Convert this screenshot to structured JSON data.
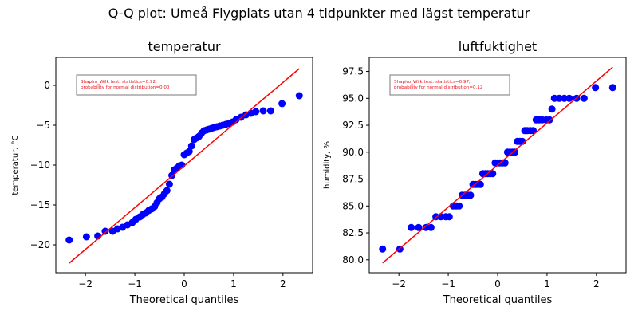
{
  "figure": {
    "suptitle": "Q-Q plot: Umeå Flygplats utan 4 tidpunkter med lägst temperatur"
  },
  "chart_data": [
    {
      "type": "scatter",
      "title": "temperatur",
      "xlabel": "Theoretical quantiles",
      "ylabel": "temperatur, °C",
      "xlim": [
        -2.6,
        2.6
      ],
      "ylim": [
        -23.5,
        3.5
      ],
      "xticks": [
        -2,
        -1,
        0,
        1,
        2
      ],
      "xtick_labels": [
        "−2",
        "−1",
        "0",
        "1",
        "2"
      ],
      "yticks": [
        -20,
        -15,
        -10,
        -5,
        0
      ],
      "ytick_labels": [
        "−20",
        "−15",
        "−10",
        "−5",
        "0"
      ],
      "grid": false,
      "annotation": [
        "Shapiro_Wilk test: statistics=0.92,",
        "probability for normal distribution=0.00"
      ],
      "annotation_color": "#e8141e",
      "point_color": "#0000ff",
      "line_color": "#ff0000",
      "reference_line": {
        "x": [
          -2.33,
          2.33
        ],
        "y": [
          -22.3,
          2.1
        ]
      },
      "points": {
        "x": [
          -2.33,
          -1.98,
          -1.75,
          -1.6,
          -1.45,
          -1.35,
          -1.25,
          -1.15,
          -1.05,
          -0.98,
          -0.9,
          -0.84,
          -0.78,
          -0.72,
          -0.66,
          -0.6,
          -0.55,
          -0.5,
          -0.45,
          -0.4,
          -0.35,
          -0.3,
          -0.25,
          -0.2,
          -0.15,
          -0.1,
          -0.05,
          0.0,
          0.05,
          0.1,
          0.15,
          0.2,
          0.25,
          0.3,
          0.35,
          0.4,
          0.45,
          0.5,
          0.55,
          0.6,
          0.66,
          0.72,
          0.78,
          0.84,
          0.9,
          0.98,
          1.05,
          1.15,
          1.25,
          1.35,
          1.45,
          1.6,
          1.75,
          1.98,
          2.33
        ],
        "y": [
          -19.4,
          -19.0,
          -18.9,
          -18.3,
          -18.3,
          -18.0,
          -17.8,
          -17.5,
          -17.2,
          -16.8,
          -16.5,
          -16.2,
          -16.0,
          -15.7,
          -15.5,
          -15.2,
          -14.7,
          -14.2,
          -14.0,
          -13.6,
          -13.2,
          -12.4,
          -11.3,
          -10.6,
          -10.4,
          -10.1,
          -10.0,
          -8.7,
          -8.5,
          -8.3,
          -7.6,
          -6.8,
          -6.6,
          -6.4,
          -6.0,
          -5.7,
          -5.6,
          -5.5,
          -5.4,
          -5.3,
          -5.2,
          -5.1,
          -5.0,
          -4.9,
          -4.8,
          -4.6,
          -4.3,
          -4.0,
          -3.7,
          -3.5,
          -3.3,
          -3.2,
          -3.2,
          -2.3,
          -1.3
        ]
      }
    },
    {
      "type": "scatter",
      "title": "luftfuktighet",
      "xlabel": "Theoretical quantiles",
      "ylabel": "humidity, %",
      "xlim": [
        -2.6,
        2.6
      ],
      "ylim": [
        78.8,
        98.8
      ],
      "xticks": [
        -2,
        -1,
        0,
        1,
        2
      ],
      "xtick_labels": [
        "−2",
        "−1",
        "0",
        "1",
        "2"
      ],
      "yticks": [
        80,
        82.5,
        85,
        87.5,
        90,
        92.5,
        95,
        97.5
      ],
      "ytick_labels": [
        "80.0",
        "82.5",
        "85.0",
        "87.5",
        "90.0",
        "92.5",
        "95.0",
        "97.5"
      ],
      "grid": false,
      "annotation": [
        "Shapiro_Wilk test: statistics=0.97,",
        "probability for normal distribution=0.12"
      ],
      "annotation_color": "#e8141e",
      "point_color": "#0000ff",
      "line_color": "#ff0000",
      "reference_line": {
        "x": [
          -2.33,
          2.33
        ],
        "y": [
          79.7,
          97.9
        ]
      },
      "points": {
        "x": [
          -2.33,
          -1.98,
          -1.75,
          -1.6,
          -1.45,
          -1.35,
          -1.25,
          -1.15,
          -1.05,
          -0.98,
          -0.9,
          -0.84,
          -0.78,
          -0.72,
          -0.66,
          -0.6,
          -0.55,
          -0.5,
          -0.45,
          -0.4,
          -0.35,
          -0.3,
          -0.25,
          -0.2,
          -0.15,
          -0.1,
          -0.05,
          0.0,
          0.05,
          0.1,
          0.15,
          0.2,
          0.25,
          0.3,
          0.35,
          0.4,
          0.45,
          0.5,
          0.55,
          0.6,
          0.66,
          0.72,
          0.78,
          0.84,
          0.9,
          0.98,
          1.05,
          1.1,
          1.15,
          1.25,
          1.35,
          1.45,
          1.6,
          1.75,
          1.98,
          2.33
        ],
        "y": [
          81,
          81,
          83,
          83,
          83,
          83,
          84,
          84,
          84,
          84,
          85,
          85,
          85,
          86,
          86,
          86,
          86,
          87,
          87,
          87,
          87,
          88,
          88,
          88,
          88,
          88,
          89,
          89,
          89,
          89,
          89,
          90,
          90,
          90,
          90,
          91,
          91,
          91,
          92,
          92,
          92,
          92,
          93,
          93,
          93,
          93,
          93,
          94,
          95,
          95,
          95,
          95,
          95,
          95,
          96,
          96
        ]
      }
    }
  ]
}
